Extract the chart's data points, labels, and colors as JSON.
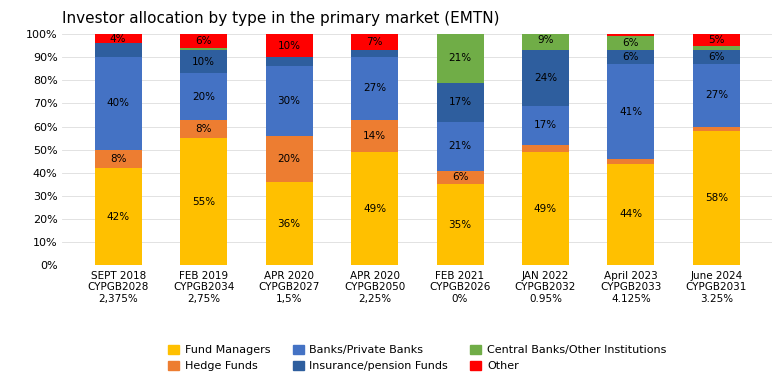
{
  "title": "Investor allocation by type in the primary market (EMTN)",
  "categories": [
    "SEPT 2018\nCYPGB2028\n2,375%",
    "FEB 2019\nCYPGB2034\n2,75%",
    "APR 2020\nCYPGB2027\n1,5%",
    "APR 2020\nCYPGB2050\n2,25%",
    "FEB 2021\nCYPGB2026\n0%",
    "JAN 2022\nCYPGB2032\n0.95%",
    "April 2023\nCYPGB2033\n4.125%",
    "June 2024\nCYPGB2031\n3.25%"
  ],
  "series_order": [
    "Fund Managers",
    "Hedge Funds",
    "Banks/Private Banks",
    "Insurance/pension Funds",
    "Central Banks/Other Institutions",
    "Other"
  ],
  "series": {
    "Fund Managers": [
      42,
      55,
      36,
      49,
      35,
      49,
      44,
      58
    ],
    "Hedge Funds": [
      8,
      8,
      20,
      14,
      6,
      3,
      2,
      2
    ],
    "Banks/Private Banks": [
      40,
      20,
      30,
      27,
      21,
      17,
      41,
      27
    ],
    "Insurance/pension Funds": [
      6,
      10,
      4,
      3,
      17,
      24,
      6,
      6
    ],
    "Central Banks/Other Institutions": [
      0,
      1,
      0,
      0,
      21,
      9,
      6,
      2
    ],
    "Other": [
      4,
      6,
      10,
      7,
      0,
      2,
      1,
      5
    ]
  },
  "colors": {
    "Fund Managers": "#FFC000",
    "Hedge Funds": "#ED7D31",
    "Banks/Private Banks": "#4472C4",
    "Insurance/pension Funds": "#2E5E9E",
    "Central Banks/Other Institutions": "#70AD47",
    "Other": "#FF0000"
  },
  "label_display": {
    "Fund Managers": [
      "42%",
      "55%",
      "36%",
      "49%",
      "35%",
      "49%",
      "44%",
      "58%"
    ],
    "Hedge Funds": [
      "8%",
      "8%",
      "20%",
      "14%",
      "6%",
      "3%",
      "2%",
      "2%"
    ],
    "Banks/Private Banks": [
      "40%",
      "20%",
      "30%",
      "27%",
      "21%",
      "17%",
      "41%",
      "27%"
    ],
    "Insurance/pension Funds": [
      "",
      "10%",
      "",
      "",
      "17%",
      "24%",
      "6%",
      "6%"
    ],
    "Central Banks/Other Institutions": [
      "",
      "",
      "",
      "",
      "21%",
      "9%",
      "6%",
      ""
    ],
    "Other": [
      "4%",
      "6%",
      "10%",
      "7%",
      "",
      "",
      "",
      "5%"
    ]
  },
  "min_show_pct": 4,
  "ylim": [
    0,
    100
  ],
  "yticks": [
    0,
    10,
    20,
    30,
    40,
    50,
    60,
    70,
    80,
    90,
    100
  ],
  "ytick_labels": [
    "0%",
    "10%",
    "20%",
    "30%",
    "40%",
    "50%",
    "60%",
    "70%",
    "80%",
    "90%",
    "100%"
  ],
  "bg_color": "#FFFFFF",
  "bar_width": 0.55,
  "grid_color": "#DDDDDD",
  "label_fontsize": 7.5,
  "title_fontsize": 11,
  "tick_fontsize": 8,
  "legend_fontsize": 8
}
